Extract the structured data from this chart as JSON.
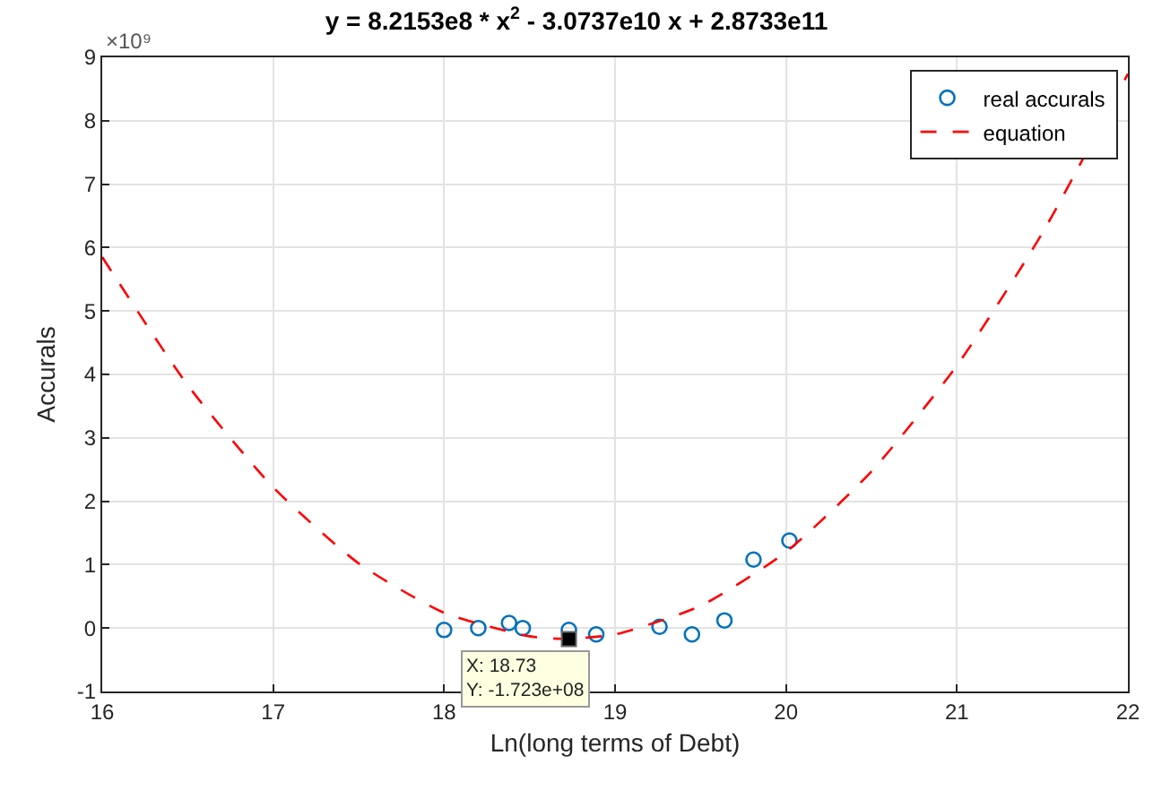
{
  "chart_data": {
    "type": "scatter",
    "title": "y = 8.2153e8 * x$^{2}$ - 3.0737e10 x + 2.8733e11",
    "xlabel": "Ln(long terms of Debt)",
    "ylabel": "Accurals",
    "annotations": [
      "×10⁹",
      {
        "text": "X: 18.73\nY: -1.723e+08",
        "x": 18.73,
        "y": -0.1723
      }
    ],
    "series": [
      {
        "name": "real accurals",
        "type": "scatter",
        "color": "#0072bd",
        "marker": "circle",
        "x": [
          18.0,
          18.2,
          18.38,
          18.46,
          18.73,
          18.89,
          19.26,
          19.45,
          19.64,
          19.81,
          20.02
        ],
        "values": [
          -0.03,
          0.0,
          0.08,
          0.0,
          -0.03,
          -0.1,
          0.02,
          -0.1,
          0.12,
          1.08,
          1.38
        ]
      },
      {
        "name": "equation",
        "type": "line",
        "color": "#ff0000",
        "line_style": "dashed",
        "marker": "none",
        "x": [
          16,
          16.5,
          17,
          17.5,
          18,
          18.5,
          18.7,
          19,
          19.5,
          20,
          20.5,
          21,
          21.5,
          22
        ],
        "values": [
          5.85,
          3.83,
          2.22,
          1.02,
          0.24,
          -0.13,
          -0.17,
          -0.1,
          0.35,
          1.2,
          2.47,
          4.14,
          6.23,
          8.74
        ]
      }
    ],
    "xlim": [
      16,
      22
    ],
    "xticks": [
      16,
      17,
      18,
      19,
      20,
      21,
      22
    ],
    "ylim": [
      -1,
      9
    ],
    "yticks": [
      -1,
      0,
      1,
      2,
      3,
      4,
      5,
      6,
      7,
      8,
      9
    ],
    "grid": true,
    "legend": "top right"
  }
}
